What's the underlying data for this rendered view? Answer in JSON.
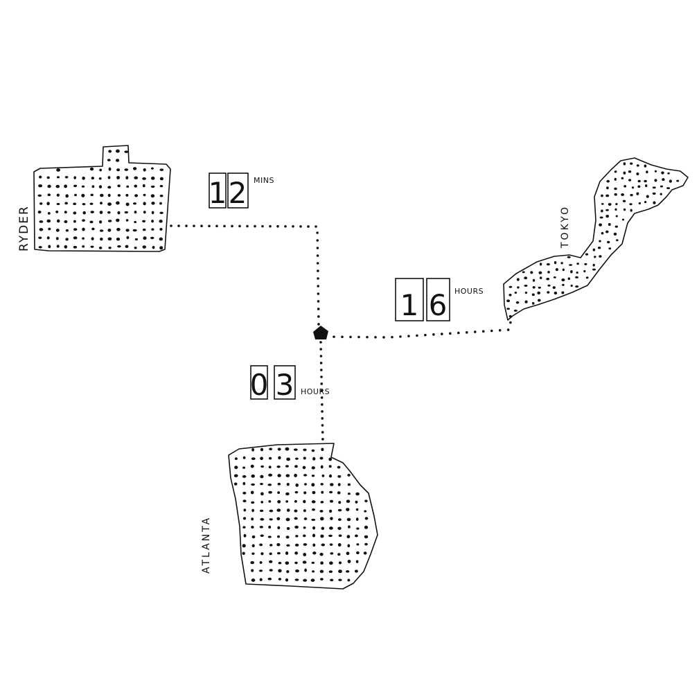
{
  "diagram": {
    "hub": {
      "icon": "home-icon"
    },
    "routes": [
      {
        "id": "ryder",
        "place": "RYDER",
        "digits": [
          "1",
          "2"
        ],
        "unit": "MINS"
      },
      {
        "id": "tokyo",
        "place": "TOKYO",
        "digits": [
          "1",
          "6"
        ],
        "unit": "HOURS"
      },
      {
        "id": "atlanta",
        "place": "ATLANTA",
        "digits": [
          "0",
          "3"
        ],
        "unit": "HOURS"
      }
    ],
    "colors": {
      "ink": "#111111",
      "paper": "#ffffff"
    }
  }
}
